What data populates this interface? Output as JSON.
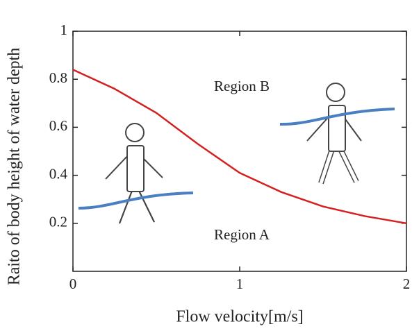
{
  "chart_data": {
    "type": "line",
    "xlabel": "Flow velocity[m/s]",
    "ylabel": "Raito of body height of water depth",
    "annotations": [
      "Region B",
      "Region A"
    ],
    "x": [
      0,
      0.25,
      0.5,
      0.75,
      1,
      1.25,
      1.5,
      1.75,
      2
    ],
    "series": [
      {
        "color": "#d42020",
        "values": [
          0.84,
          0.76,
          0.66,
          0.53,
          0.41,
          0.33,
          0.27,
          0.23,
          0.2
        ]
      }
    ],
    "xlim": [
      0,
      2
    ],
    "xticks": [
      0,
      1,
      2
    ],
    "ylim": [
      0,
      1
    ],
    "yticks": [
      0.2,
      0.4,
      0.6,
      0.8,
      1
    ]
  }
}
